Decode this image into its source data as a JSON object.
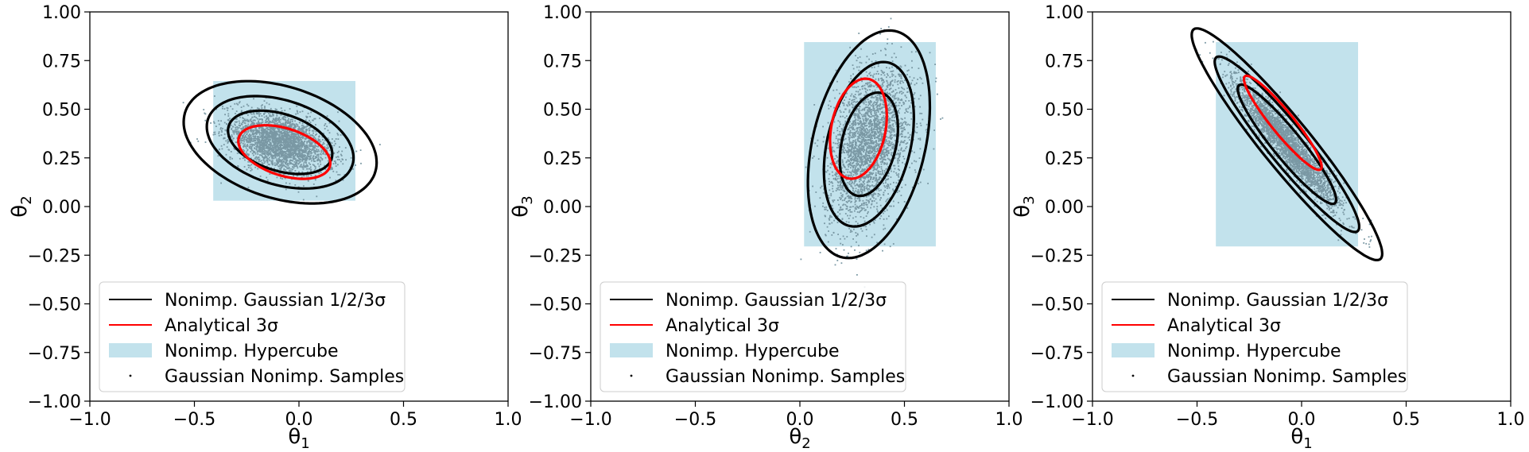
{
  "colors": {
    "gaussian_contour": "#000000",
    "analytical_contour": "#ff0000",
    "hypercube_fill": "#add8e6",
    "samples": "#7a98a4"
  },
  "legend_entries": [
    {
      "label": "Nonimp. Gaussian 1/2/3σ",
      "kind": "line",
      "color": "#000000"
    },
    {
      "label": "Analytical 3σ",
      "kind": "line",
      "color": "#ff0000"
    },
    {
      "label": "Nonimp. Hypercube",
      "kind": "patch",
      "color": "#add8e6"
    },
    {
      "label": "Gaussian Nonimp. Samples",
      "kind": "dot",
      "color": "#000000"
    }
  ],
  "chart_data": [
    {
      "type": "scatter",
      "xlabel_sym": "θ",
      "xlabel_sub": "1",
      "ylabel_sym": "θ",
      "ylabel_sub": "2",
      "xlim": [
        -1.0,
        1.0
      ],
      "ylim": [
        -1.0,
        1.0
      ],
      "xticks": [
        "−1.0",
        "−0.5",
        "0.0",
        "0.5",
        "1.0"
      ],
      "yticks": [
        "1.00",
        "0.75",
        "0.50",
        "0.25",
        "0.00",
        "−0.25",
        "−0.50",
        "−0.75",
        "−1.00"
      ],
      "xtick_values": [
        -1.0,
        -0.5,
        0.0,
        0.5,
        1.0
      ],
      "ytick_values": [
        1.0,
        0.75,
        0.5,
        0.25,
        0.0,
        -0.25,
        -0.5,
        -0.75,
        -1.0
      ],
      "legend_position": "lower-left",
      "hypercube": {
        "x": [
          -0.41,
          0.27
        ],
        "y": [
          0.03,
          0.645
        ]
      },
      "gaussian_ellipses": [
        {
          "sigma": 1,
          "center": [
            -0.09,
            0.33
          ],
          "semi_major": 0.26,
          "semi_minor": 0.145,
          "angle_deg": -20
        },
        {
          "sigma": 2,
          "center": [
            -0.09,
            0.33
          ],
          "semi_major": 0.365,
          "semi_minor": 0.215,
          "angle_deg": -20
        },
        {
          "sigma": 3,
          "center": [
            -0.09,
            0.33
          ],
          "semi_major": 0.48,
          "semi_minor": 0.285,
          "angle_deg": -20
        }
      ],
      "analytical_ellipse": {
        "sigma": 3,
        "center": [
          -0.07,
          0.28
        ],
        "semi_major": 0.23,
        "semi_minor": 0.12,
        "angle_deg": -20
      },
      "samples": {
        "center": [
          -0.09,
          0.33
        ],
        "sd_major": 0.125,
        "sd_minor": 0.07,
        "angle_deg": -20,
        "count": 3000
      }
    },
    {
      "type": "scatter",
      "xlabel_sym": "θ",
      "xlabel_sub": "2",
      "ylabel_sym": "θ",
      "ylabel_sub": "3",
      "xlim": [
        -1.0,
        1.0
      ],
      "ylim": [
        -1.0,
        1.0
      ],
      "xticks": [
        "−1.0",
        "−0.5",
        "0.0",
        "0.5",
        "1.0"
      ],
      "yticks": [
        "1.00",
        "0.75",
        "0.50",
        "0.25",
        "0.00",
        "−0.25",
        "−0.50",
        "−0.75",
        "−1.00"
      ],
      "xtick_values": [
        -1.0,
        -0.5,
        0.0,
        0.5,
        1.0
      ],
      "ytick_values": [
        1.0,
        0.75,
        0.5,
        0.25,
        0.0,
        -0.25,
        -0.5,
        -0.75,
        -1.0
      ],
      "legend_position": "lower-left",
      "hypercube": {
        "x": [
          0.02,
          0.65
        ],
        "y": [
          -0.205,
          0.845
        ]
      },
      "gaussian_ellipses": [
        {
          "sigma": 1,
          "center": [
            0.33,
            0.32
          ],
          "semi_major": 0.27,
          "semi_minor": 0.13,
          "angle_deg": 78
        },
        {
          "sigma": 2,
          "center": [
            0.33,
            0.32
          ],
          "semi_major": 0.43,
          "semi_minor": 0.2,
          "angle_deg": 78
        },
        {
          "sigma": 3,
          "center": [
            0.33,
            0.32
          ],
          "semi_major": 0.595,
          "semi_minor": 0.27,
          "angle_deg": 78
        }
      ],
      "analytical_ellipse": {
        "sigma": 3,
        "center": [
          0.28,
          0.4
        ],
        "semi_major": 0.26,
        "semi_minor": 0.13,
        "angle_deg": 80
      },
      "samples": {
        "center": [
          0.33,
          0.32
        ],
        "sd_major": 0.2,
        "sd_minor": 0.09,
        "angle_deg": 78,
        "count": 3000
      }
    },
    {
      "type": "scatter",
      "xlabel_sym": "θ",
      "xlabel_sub": "1",
      "ylabel_sym": "θ",
      "ylabel_sub": "3",
      "xlim": [
        -1.0,
        1.0
      ],
      "ylim": [
        -1.0,
        1.0
      ],
      "xticks": [
        "−1.0",
        "−0.5",
        "0.0",
        "0.5",
        "1.0"
      ],
      "yticks": [
        "1.00",
        "0.75",
        "0.50",
        "0.25",
        "0.00",
        "−0.25",
        "−0.50",
        "−0.75",
        "−1.00"
      ],
      "xtick_values": [
        -1.0,
        -0.5,
        0.0,
        0.5,
        1.0
      ],
      "ytick_values": [
        1.0,
        0.75,
        0.5,
        0.25,
        0.0,
        -0.25,
        -0.5,
        -0.75,
        -1.0
      ],
      "legend_position": "lower-left",
      "hypercube": {
        "x": [
          -0.41,
          0.27
        ],
        "y": [
          -0.205,
          0.845
        ]
      },
      "gaussian_ellipses": [
        {
          "sigma": 1,
          "center": [
            -0.07,
            0.32
          ],
          "semi_major": 0.38,
          "semi_minor": 0.07,
          "angle_deg": -53
        },
        {
          "sigma": 2,
          "center": [
            -0.07,
            0.32
          ],
          "semi_major": 0.56,
          "semi_minor": 0.095,
          "angle_deg": -53
        },
        {
          "sigma": 3,
          "center": [
            -0.07,
            0.32
          ],
          "semi_major": 0.74,
          "semi_minor": 0.12,
          "angle_deg": -53
        }
      ],
      "analytical_ellipse": {
        "sigma": 3,
        "center": [
          -0.09,
          0.43
        ],
        "semi_major": 0.3,
        "semi_minor": 0.055,
        "angle_deg": -53
      },
      "samples": {
        "center": [
          -0.07,
          0.32
        ],
        "sd_major": 0.2,
        "sd_minor": 0.035,
        "angle_deg": -53,
        "count": 3000
      }
    }
  ]
}
